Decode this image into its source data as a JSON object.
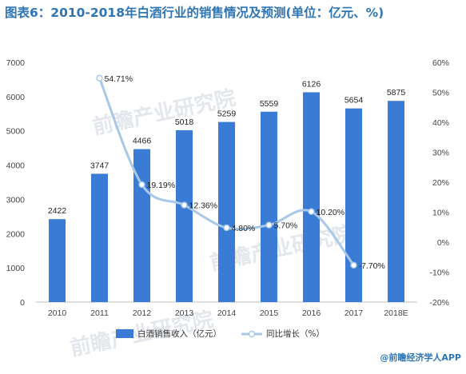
{
  "chart_title": "图表6：2010-2018年白酒行业的销售情况及预测(单位：亿元、%)",
  "source": "@前瞻经济学人APP",
  "watermark": "前瞻产业研究院",
  "colors": {
    "bar": "#3a7bd5",
    "line": "#a9c8e8",
    "title": "#2e75b6"
  },
  "chart_data": {
    "type": "bar",
    "title": "图表6：2010-2018年白酒行业的销售情况及预测(单位：亿元、%)",
    "categories": [
      "2010",
      "2011",
      "2012",
      "2013",
      "2014",
      "2015",
      "2016",
      "2017",
      "2018E"
    ],
    "series": [
      {
        "name": "白酒销售收入（亿元）",
        "type": "bar",
        "axis": "left",
        "values": [
          2422,
          3747,
          4466,
          5018,
          5259,
          5559,
          6126,
          5654,
          5875
        ]
      },
      {
        "name": "同比增长（%）",
        "type": "line",
        "axis": "right",
        "values": [
          null,
          54.71,
          19.19,
          12.36,
          4.8,
          5.7,
          10.2,
          -7.7,
          null
        ],
        "labels": [
          "",
          "54.71%",
          "19.19%",
          "12.36%",
          "4.80%",
          "5.70%",
          "10.20%",
          "-7.70%",
          ""
        ]
      }
    ],
    "ylim_left": [
      0,
      7000
    ],
    "yticks_left": [
      "0",
      "1000",
      "2000",
      "3000",
      "4000",
      "5000",
      "6000",
      "7000"
    ],
    "ylim_right": [
      -20,
      60
    ],
    "yticks_right": [
      "-20%",
      "-10%",
      "0%",
      "10%",
      "20%",
      "30%",
      "40%",
      "50%",
      "60%"
    ],
    "legend_placement": "bottom-center",
    "grid": false
  }
}
